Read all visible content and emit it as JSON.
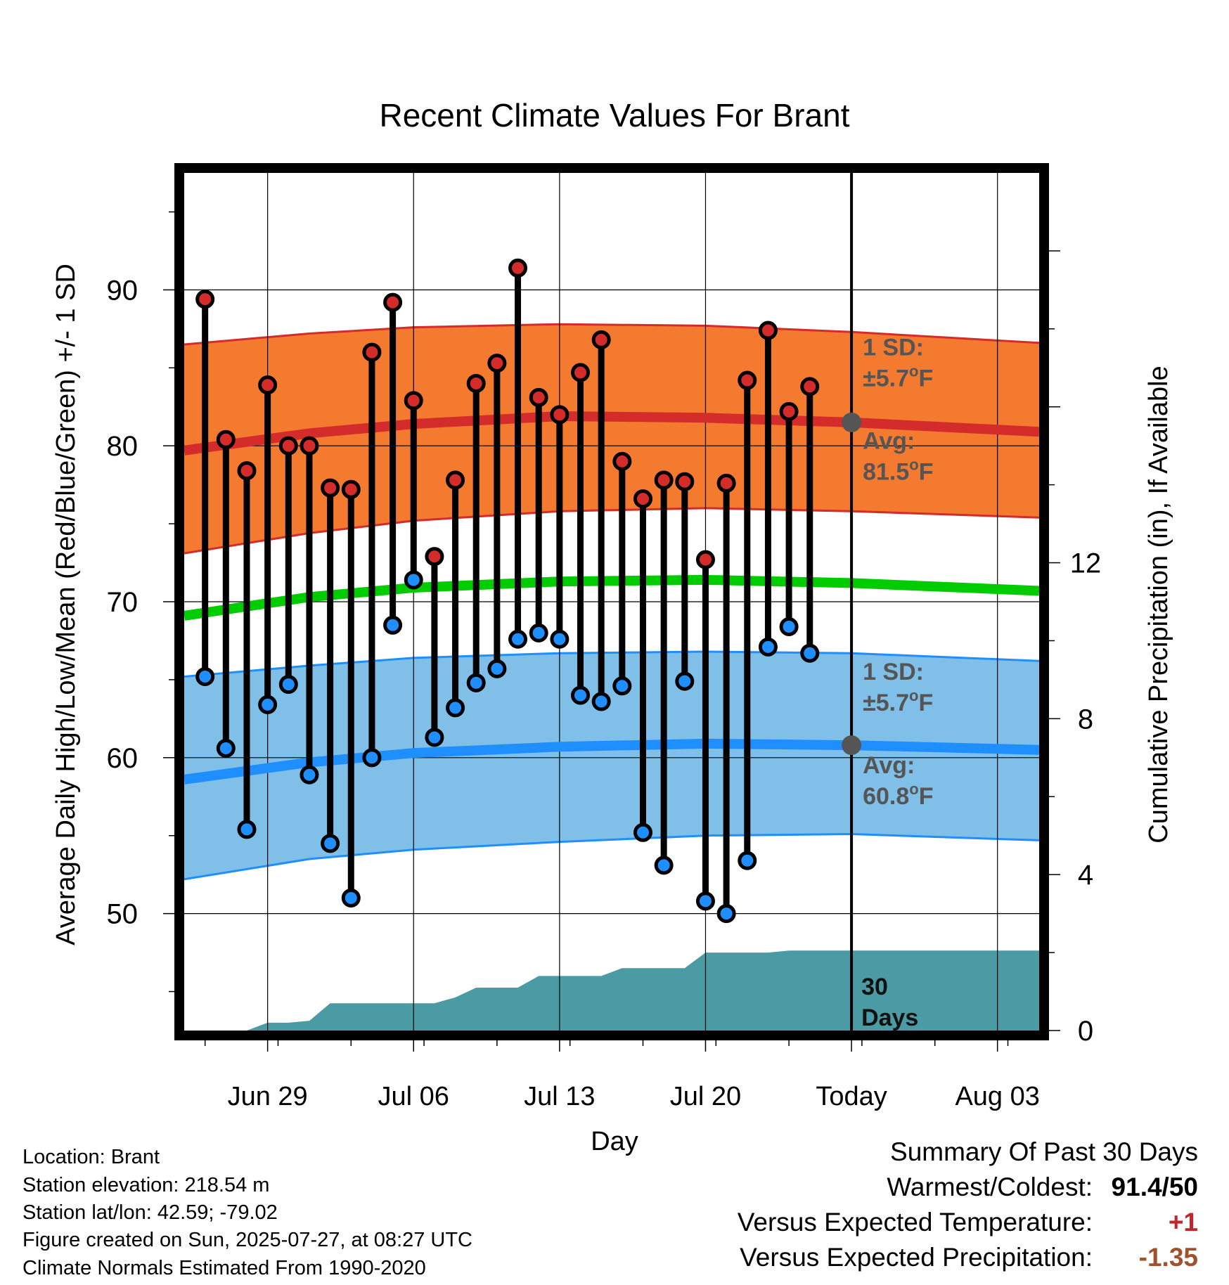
{
  "chart_data": {
    "type": "line",
    "title": "Recent Climate Values For Brant",
    "xlabel": "Day",
    "ylabel": "Average Daily High/Low/Mean (Red/Blue/Green) +/- 1 SD",
    "y2label": "Cumulative Precipitation (in), If Available",
    "xlim": [
      "2025-06-25",
      "2025-08-05"
    ],
    "ylim": [
      42.5,
      97.5
    ],
    "y2lim": [
      0,
      22
    ],
    "x_ticks": [
      "Jun 29",
      "Jul 06",
      "Jul 13",
      "Jul 20",
      "Today",
      "Aug 03"
    ],
    "x_tick_dates": [
      "2025-06-29",
      "2025-07-06",
      "2025-07-13",
      "2025-07-20",
      "2025-07-27",
      "2025-08-03"
    ],
    "y_ticks": [
      50,
      60,
      70,
      80,
      90
    ],
    "y2_ticks": [
      0,
      4,
      8,
      12
    ],
    "grid": true,
    "today": "2025-07-27",
    "series": [
      {
        "name": "High",
        "color": "#d42b2b",
        "x": [
          "2025-06-26",
          "2025-06-27",
          "2025-06-28",
          "2025-06-29",
          "2025-06-30",
          "2025-07-01",
          "2025-07-02",
          "2025-07-03",
          "2025-07-04",
          "2025-07-05",
          "2025-07-06",
          "2025-07-07",
          "2025-07-08",
          "2025-07-09",
          "2025-07-10",
          "2025-07-11",
          "2025-07-12",
          "2025-07-13",
          "2025-07-14",
          "2025-07-15",
          "2025-07-16",
          "2025-07-17",
          "2025-07-18",
          "2025-07-19",
          "2025-07-20",
          "2025-07-21",
          "2025-07-22",
          "2025-07-23",
          "2025-07-24",
          "2025-07-25",
          "2025-07-26"
        ],
        "values": [
          89.4,
          80.4,
          78.4,
          83.9,
          80,
          80,
          77.3,
          77.2,
          86,
          89.2,
          82.9,
          72.9,
          77.8,
          84,
          85.3,
          91.4,
          83.1,
          82,
          84.7,
          86.8,
          79,
          76.6,
          77.8,
          77.7,
          72.7,
          77.6,
          84.2,
          87.4,
          82.2,
          83.8,
          null
        ]
      },
      {
        "name": "Low",
        "color": "#1f8fff",
        "x": [
          "2025-06-26",
          "2025-06-27",
          "2025-06-28",
          "2025-06-29",
          "2025-06-30",
          "2025-07-01",
          "2025-07-02",
          "2025-07-03",
          "2025-07-04",
          "2025-07-05",
          "2025-07-06",
          "2025-07-07",
          "2025-07-08",
          "2025-07-09",
          "2025-07-10",
          "2025-07-11",
          "2025-07-12",
          "2025-07-13",
          "2025-07-14",
          "2025-07-15",
          "2025-07-16",
          "2025-07-17",
          "2025-07-18",
          "2025-07-19",
          "2025-07-20",
          "2025-07-21",
          "2025-07-22",
          "2025-07-23",
          "2025-07-24",
          "2025-07-25",
          "2025-07-26"
        ],
        "values": [
          65.2,
          60.6,
          55.4,
          63.4,
          64.7,
          58.9,
          54.5,
          51,
          60,
          68.5,
          71.4,
          61.3,
          63.2,
          64.8,
          65.7,
          67.6,
          68,
          67.6,
          64,
          63.6,
          64.6,
          55.2,
          53.1,
          64.9,
          50.8,
          50,
          53.4,
          67.1,
          68.4,
          66.7,
          null
        ]
      },
      {
        "name": "Normal High",
        "color": "#d42b2b",
        "x": [
          "2025-06-25",
          "2025-07-01",
          "2025-07-06",
          "2025-07-13",
          "2025-07-20",
          "2025-07-27",
          "2025-08-05"
        ],
        "values": [
          79.7,
          80.8,
          81.4,
          81.9,
          81.8,
          81.5,
          80.9
        ]
      },
      {
        "name": "Normal High +1 SD",
        "color": "#d42b2b",
        "x": [
          "2025-06-25",
          "2025-07-01",
          "2025-07-06",
          "2025-07-13",
          "2025-07-20",
          "2025-07-27",
          "2025-08-05"
        ],
        "values": [
          86.5,
          87.2,
          87.6,
          87.8,
          87.7,
          87.3,
          86.6
        ]
      },
      {
        "name": "Normal High -1 SD",
        "color": "#d42b2b",
        "x": [
          "2025-06-25",
          "2025-07-01",
          "2025-07-06",
          "2025-07-13",
          "2025-07-20",
          "2025-07-27",
          "2025-08-05"
        ],
        "values": [
          73.1,
          74.4,
          75.2,
          75.8,
          76.0,
          75.8,
          75.4
        ]
      },
      {
        "name": "Normal Mean",
        "color": "#00cc00",
        "x": [
          "2025-06-25",
          "2025-07-01",
          "2025-07-06",
          "2025-07-13",
          "2025-07-20",
          "2025-07-27",
          "2025-08-05"
        ],
        "values": [
          69.1,
          70.3,
          70.9,
          71.3,
          71.4,
          71.2,
          70.7
        ]
      },
      {
        "name": "Normal Low",
        "color": "#1f8fff",
        "x": [
          "2025-06-25",
          "2025-07-01",
          "2025-07-06",
          "2025-07-13",
          "2025-07-20",
          "2025-07-27",
          "2025-08-05"
        ],
        "values": [
          58.6,
          59.7,
          60.3,
          60.7,
          60.9,
          60.8,
          60.5
        ]
      },
      {
        "name": "Normal Low +1 SD",
        "color": "#1f8fff",
        "x": [
          "2025-06-25",
          "2025-07-01",
          "2025-07-06",
          "2025-07-13",
          "2025-07-20",
          "2025-07-27",
          "2025-08-05"
        ],
        "values": [
          65.2,
          65.9,
          66.4,
          66.7,
          66.8,
          66.7,
          66.2
        ]
      },
      {
        "name": "Normal Low -1 SD",
        "color": "#1f8fff",
        "x": [
          "2025-06-25",
          "2025-07-01",
          "2025-07-06",
          "2025-07-13",
          "2025-07-20",
          "2025-07-27",
          "2025-08-05"
        ],
        "values": [
          52.2,
          53.5,
          54.1,
          54.6,
          55.0,
          55.1,
          54.7
        ]
      },
      {
        "name": "Cumulative Precipitation",
        "color": "#4a9ba3",
        "axis": "y2",
        "x": [
          "2025-06-28",
          "2025-06-29",
          "2025-06-30",
          "2025-07-01",
          "2025-07-02",
          "2025-07-03",
          "2025-07-04",
          "2025-07-05",
          "2025-07-06",
          "2025-07-07",
          "2025-07-08",
          "2025-07-09",
          "2025-07-10",
          "2025-07-11",
          "2025-07-12",
          "2025-07-13",
          "2025-07-14",
          "2025-07-15",
          "2025-07-16",
          "2025-07-17",
          "2025-07-18",
          "2025-07-19",
          "2025-07-20",
          "2025-07-21",
          "2025-07-22",
          "2025-07-23",
          "2025-07-24",
          "2025-07-25",
          "2025-07-26",
          "2025-07-27",
          "2025-08-05"
        ],
        "values": [
          0,
          0.2,
          0.2,
          0.25,
          0.7,
          0.7,
          0.7,
          0.7,
          0.7,
          0.7,
          0.85,
          1.1,
          1.1,
          1.1,
          1.4,
          1.4,
          1.4,
          1.4,
          1.6,
          1.6,
          1.6,
          1.6,
          2.0,
          2.0,
          2.0,
          2.0,
          2.05,
          2.05,
          2.05,
          2.05,
          2.05
        ]
      }
    ],
    "annotations": {
      "high_sd": {
        "line1": "1 SD:",
        "line2": "±5.7",
        "unit": "oF"
      },
      "high_avg": {
        "line1": "Avg:",
        "line2": "81.5",
        "unit": "oF",
        "value": 81.5
      },
      "low_sd": {
        "line1": "1 SD:",
        "line2": "±5.7",
        "unit": "oF"
      },
      "low_avg": {
        "line1": "Avg:",
        "line2": "60.8",
        "unit": "oF",
        "value": 60.8
      },
      "precip": {
        "line1": "30",
        "line2": "Days"
      }
    }
  },
  "footer": {
    "location": "Location: Brant",
    "elevation": "Station elevation: 218.54 m",
    "latlon": "Station lat/lon: 42.59; -79.02",
    "created": "Figure created on Sun, 2025-07-27, at 08:27 UTC",
    "normals": "Climate Normals Estimated From 1990-2020"
  },
  "summary": {
    "title": "Summary Of Past 30 Days",
    "warmest_label": "Warmest/Coldest:",
    "warmest_value": "91.4/50",
    "temp_label": "Versus Expected Temperature:",
    "temp_value": "+1",
    "temp_color": "#c0262d",
    "precip_label": "Versus Expected Precipitation:",
    "precip_value": "-1.35",
    "precip_color": "#a0522d"
  },
  "colors": {
    "high_band": "#f47a30",
    "low_band": "#80c0e8",
    "precip_fill": "#4a9ba3",
    "annotation_text": "#555555",
    "avg_marker": "#555555"
  }
}
